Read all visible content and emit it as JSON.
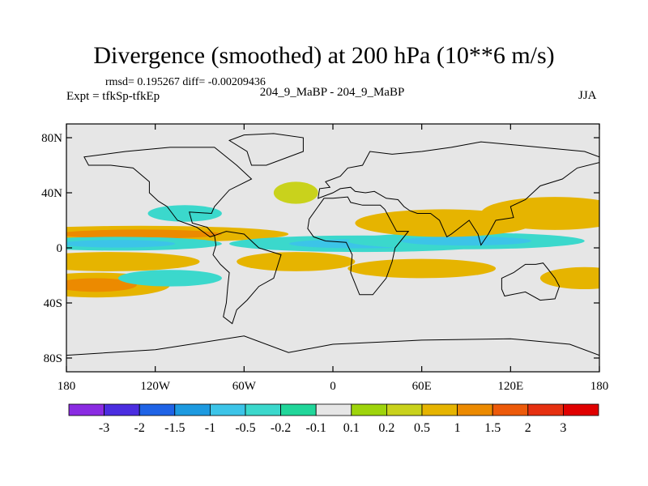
{
  "title": "Divergence (smoothed) at 200 hPa (10**6 m/s)",
  "stats": "rmsd= 0.195267 diff= -0.00209436",
  "experiment": "Expt = tfkSp-tfkEp",
  "comparison": "204_9_MaBP - 204_9_MaBP",
  "season": "JJA",
  "chart_data": {
    "type": "contour-map",
    "projection": "cylindrical-equidistant",
    "variable": "Divergence (smoothed) at 200 hPa",
    "units": "10**6 m/s",
    "x_range": [
      -180,
      180
    ],
    "y_range": [
      -90,
      90
    ],
    "x_ticks": [
      {
        "value": -180,
        "label": "180"
      },
      {
        "value": -120,
        "label": "120W"
      },
      {
        "value": -60,
        "label": "60W"
      },
      {
        "value": 0,
        "label": "0"
      },
      {
        "value": 60,
        "label": "60E"
      },
      {
        "value": 120,
        "label": "120E"
      },
      {
        "value": 180,
        "label": "180"
      }
    ],
    "y_ticks": [
      {
        "value": 80,
        "label": "80N"
      },
      {
        "value": 40,
        "label": "40N"
      },
      {
        "value": 0,
        "label": "0"
      },
      {
        "value": -40,
        "label": "40S"
      },
      {
        "value": -80,
        "label": "80S"
      }
    ],
    "background_color": "#e6e6e6",
    "colorbar": {
      "levels": [
        "-3",
        "-2",
        "-1.5",
        "-1",
        "-0.5",
        "-0.2",
        "-0.1",
        "0.1",
        "0.2",
        "0.5",
        "1",
        "1.5",
        "2",
        "3"
      ],
      "colors": [
        "#8a2be2",
        "#4b2de0",
        "#1f63e6",
        "#1d9ae0",
        "#3cc4e8",
        "#3bd8cc",
        "#21d69a",
        "#e6e6e6",
        "#9ed40c",
        "#c9d21c",
        "#e6b400",
        "#ec8a00",
        "#ed5a0a",
        "#e63010",
        "#e00000"
      ]
    },
    "features": [
      {
        "name": "central-pacific-divergence-band",
        "lon": -130,
        "lat": 10,
        "dlon": 100,
        "dlat": 6,
        "value": 0.7
      },
      {
        "name": "equatorial-convergence-west",
        "lon": -145,
        "lat": 3,
        "dlon": 70,
        "dlat": 5,
        "value": -0.4
      },
      {
        "name": "equatorial-convergence-africa",
        "lon": 20,
        "lat": 3,
        "dlon": 90,
        "dlat": 6,
        "value": -0.4
      },
      {
        "name": "indian-ocean-convergence",
        "lon": 90,
        "lat": 5,
        "dlon": 80,
        "dlat": 6,
        "value": -0.5
      },
      {
        "name": "asian-monsoon-divergence",
        "lon": 75,
        "lat": 18,
        "dlon": 60,
        "dlat": 10,
        "value": 0.5
      },
      {
        "name": "west-pacific-divergence",
        "lon": 150,
        "lat": 25,
        "dlon": 50,
        "dlat": 12,
        "value": 0.6
      },
      {
        "name": "south-pacific-band",
        "lon": -150,
        "lat": -10,
        "dlon": 60,
        "dlat": 7,
        "value": 0.6
      },
      {
        "name": "southern-hemisphere-band-west",
        "lon": -160,
        "lat": -27,
        "dlon": 50,
        "dlat": 9,
        "value": 0.7
      },
      {
        "name": "south-atlantic-band",
        "lon": -25,
        "lat": -10,
        "dlon": 40,
        "dlat": 7,
        "value": 0.5
      },
      {
        "name": "south-indian-band",
        "lon": 60,
        "lat": -15,
        "dlon": 50,
        "dlat": 7,
        "value": 0.5
      },
      {
        "name": "south-pacific-east",
        "lon": 170,
        "lat": -22,
        "dlon": 30,
        "dlat": 8,
        "value": 0.6
      },
      {
        "name": "southern-ocean-convergence",
        "lon": -110,
        "lat": -22,
        "dlon": 35,
        "dlat": 6,
        "value": -0.3
      },
      {
        "name": "north-atlantic-divergence",
        "lon": -25,
        "lat": 40,
        "dlon": 15,
        "dlat": 8,
        "value": 0.3
      },
      {
        "name": "north-america-convergence",
        "lon": -100,
        "lat": 25,
        "dlon": 25,
        "dlat": 6,
        "value": -0.3
      }
    ]
  }
}
